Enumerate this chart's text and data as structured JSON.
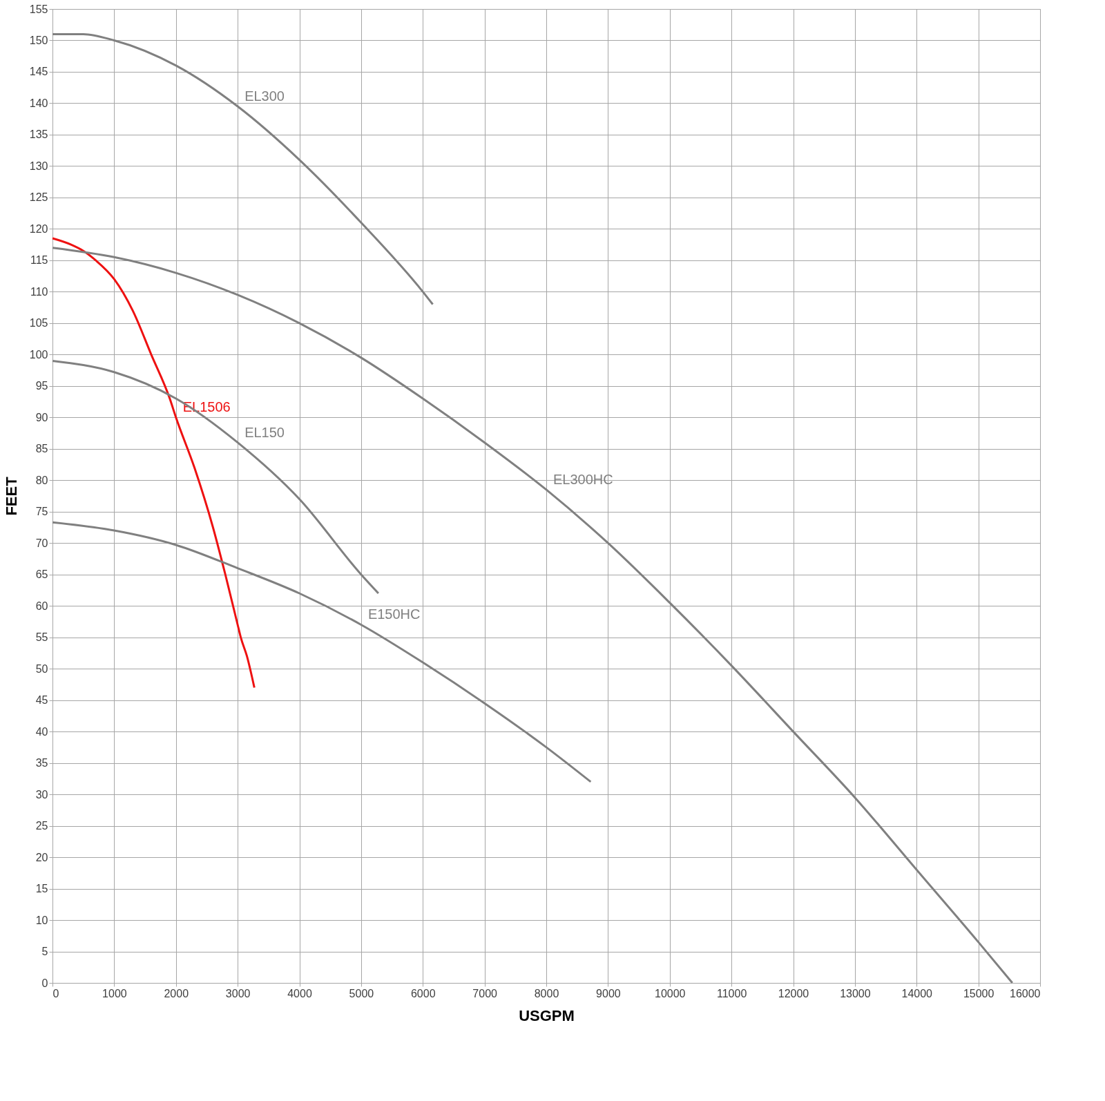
{
  "chart_data": {
    "type": "line",
    "xlabel": "USGPM",
    "ylabel": "FEET",
    "xlim": [
      0,
      16000
    ],
    "ylim": [
      0,
      155
    ],
    "xticks": [
      0,
      1000,
      2000,
      3000,
      4000,
      5000,
      6000,
      7000,
      8000,
      9000,
      10000,
      11000,
      12000,
      13000,
      14000,
      15000,
      16000
    ],
    "yticks": [
      0,
      5,
      10,
      15,
      20,
      25,
      30,
      35,
      40,
      45,
      50,
      55,
      60,
      65,
      70,
      75,
      80,
      85,
      90,
      95,
      100,
      105,
      110,
      115,
      120,
      125,
      130,
      135,
      140,
      145,
      150,
      155
    ],
    "grid": true,
    "marker": "none",
    "line_style": "solid",
    "series": [
      {
        "name": "EL300",
        "color": "#808080",
        "x": [
          0,
          500,
          1000,
          2000,
          3000,
          4000,
          5000,
          6000,
          6160
        ],
        "values": [
          151,
          151,
          150,
          146,
          139.5,
          131,
          121,
          110,
          108
        ]
      },
      {
        "name": "EL1506",
        "color": "#ee1111",
        "x": [
          0,
          300,
          500,
          700,
          1000,
          1300,
          1600,
          1900,
          2000,
          2300,
          2600,
          2800,
          3000,
          3050,
          3150,
          3270
        ],
        "values": [
          118.5,
          117.5,
          116.5,
          115,
          112,
          107,
          100,
          93,
          90,
          82,
          72.5,
          65,
          57,
          55,
          52,
          47
        ]
      },
      {
        "name": "EL150",
        "color": "#808080",
        "x": [
          0,
          1000,
          2000,
          3000,
          4000,
          5000,
          5280
        ],
        "values": [
          99,
          97.2,
          93,
          86,
          77,
          65,
          62
        ]
      },
      {
        "name": "EL300HC",
        "color": "#808080",
        "x": [
          0,
          1000,
          2000,
          3000,
          4000,
          5000,
          6000,
          7000,
          8000,
          9000,
          10000,
          11000,
          12000,
          13000,
          14000,
          15000,
          15550
        ],
        "values": [
          117,
          115.5,
          113,
          109.5,
          105,
          99.5,
          93,
          86,
          78.5,
          70,
          60.5,
          50.5,
          40,
          29.5,
          18,
          6.5,
          0
        ]
      },
      {
        "name": "E150HC",
        "color": "#808080",
        "x": [
          0,
          1000,
          2000,
          3000,
          4000,
          5000,
          6000,
          7000,
          8000,
          8720
        ],
        "values": [
          73.3,
          72,
          69.7,
          66,
          62,
          57,
          51,
          44.5,
          37.5,
          32
        ]
      }
    ]
  }
}
